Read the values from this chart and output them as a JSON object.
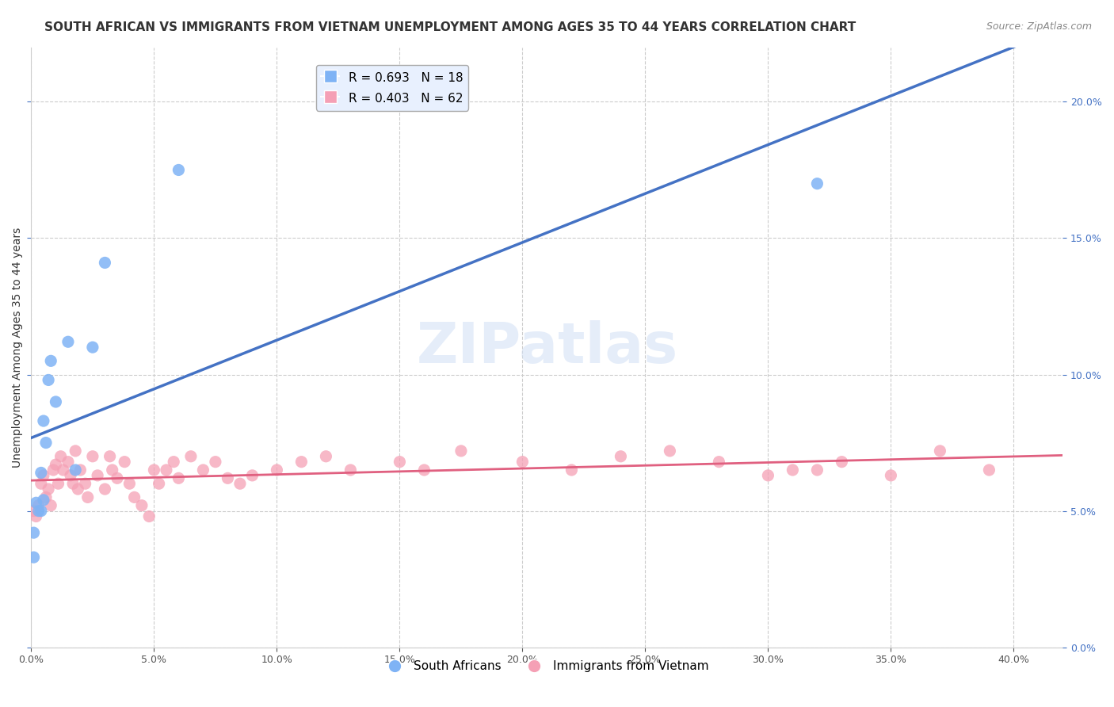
{
  "title": "SOUTH AFRICAN VS IMMIGRANTS FROM VIETNAM UNEMPLOYMENT AMONG AGES 35 TO 44 YEARS CORRELATION CHART",
  "source": "Source: ZipAtlas.com",
  "ylabel": "Unemployment Among Ages 35 to 44 years",
  "xlabel_ticks": [
    0.0,
    0.05,
    0.1,
    0.15,
    0.2,
    0.25,
    0.3,
    0.35,
    0.4
  ],
  "ylim": [
    0.0,
    0.22
  ],
  "xlim": [
    0.0,
    0.42
  ],
  "yticks": [
    0.0,
    0.05,
    0.1,
    0.15,
    0.2
  ],
  "watermark": "ZIPatlas",
  "south_african_x": [
    0.001,
    0.002,
    0.003,
    0.004,
    0.004,
    0.005,
    0.005,
    0.006,
    0.007,
    0.008,
    0.01,
    0.015,
    0.018,
    0.025,
    0.03,
    0.06,
    0.32,
    0.001
  ],
  "south_african_y": [
    0.042,
    0.053,
    0.05,
    0.064,
    0.05,
    0.054,
    0.083,
    0.075,
    0.098,
    0.105,
    0.09,
    0.112,
    0.065,
    0.11,
    0.141,
    0.175,
    0.17,
    0.033
  ],
  "vietnam_x": [
    0.001,
    0.002,
    0.003,
    0.004,
    0.005,
    0.006,
    0.007,
    0.008,
    0.009,
    0.01,
    0.011,
    0.012,
    0.013,
    0.015,
    0.016,
    0.017,
    0.018,
    0.019,
    0.02,
    0.022,
    0.023,
    0.025,
    0.027,
    0.03,
    0.032,
    0.033,
    0.035,
    0.038,
    0.04,
    0.042,
    0.045,
    0.048,
    0.05,
    0.052,
    0.055,
    0.058,
    0.06,
    0.065,
    0.07,
    0.075,
    0.08,
    0.085,
    0.09,
    0.1,
    0.11,
    0.12,
    0.13,
    0.15,
    0.16,
    0.175,
    0.2,
    0.22,
    0.24,
    0.26,
    0.28,
    0.3,
    0.31,
    0.32,
    0.33,
    0.35,
    0.37,
    0.39
  ],
  "vietnam_y": [
    0.05,
    0.048,
    0.052,
    0.06,
    0.063,
    0.055,
    0.058,
    0.052,
    0.065,
    0.067,
    0.06,
    0.07,
    0.065,
    0.068,
    0.063,
    0.06,
    0.072,
    0.058,
    0.065,
    0.06,
    0.055,
    0.07,
    0.063,
    0.058,
    0.07,
    0.065,
    0.062,
    0.068,
    0.06,
    0.055,
    0.052,
    0.048,
    0.065,
    0.06,
    0.065,
    0.068,
    0.062,
    0.07,
    0.065,
    0.068,
    0.062,
    0.06,
    0.063,
    0.065,
    0.068,
    0.07,
    0.065,
    0.068,
    0.065,
    0.072,
    0.068,
    0.065,
    0.07,
    0.072,
    0.068,
    0.063,
    0.065,
    0.065,
    0.068,
    0.063,
    0.072,
    0.065
  ],
  "sa_color": "#7fb3f5",
  "sa_color_line": "#4472c4",
  "vn_color": "#f5a0b5",
  "vn_color_line": "#e06080",
  "sa_R": 0.693,
  "sa_N": 18,
  "vn_R": 0.403,
  "vn_N": 62,
  "legend_box_color": "#e8f0fe",
  "title_fontsize": 11,
  "axis_label_fontsize": 10,
  "tick_fontsize": 9,
  "source_fontsize": 9
}
